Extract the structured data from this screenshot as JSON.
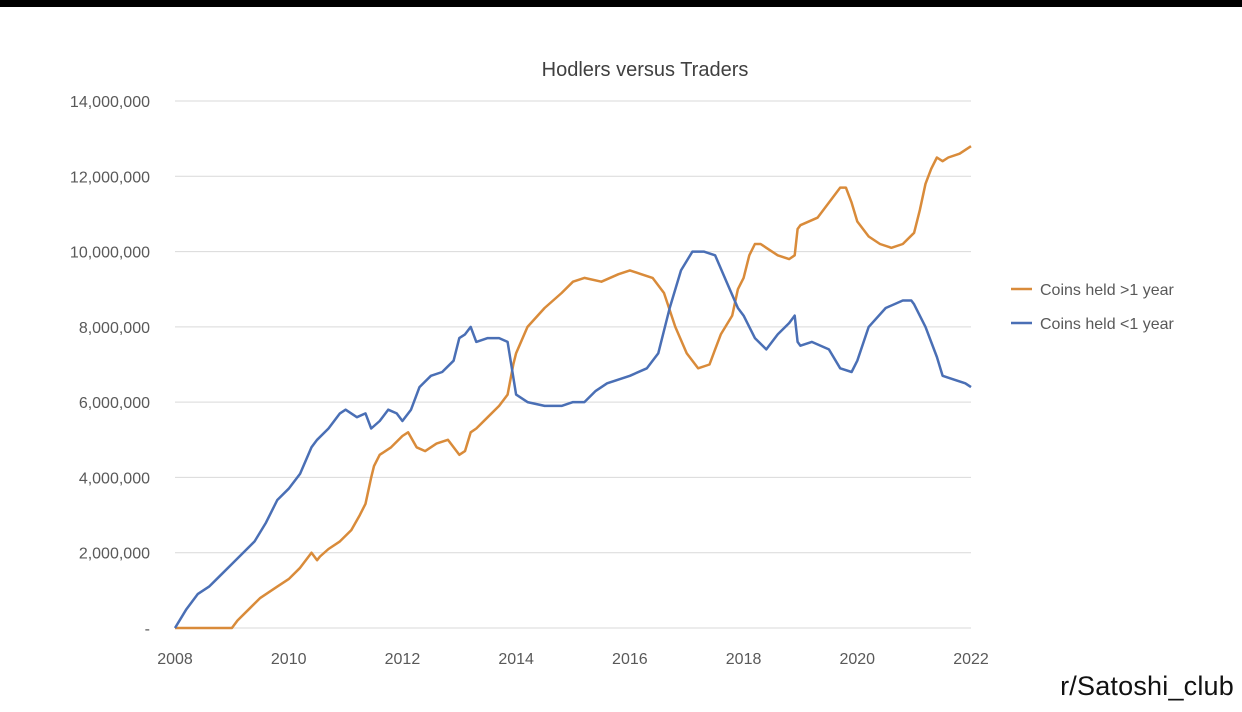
{
  "watermark": "r/Satoshi_club",
  "colors": {
    "coins_gt_1y": "#D98B3A",
    "coins_lt_1y": "#4A6FB5",
    "grid": "#D9D9D9",
    "text": "#595959",
    "top_bar": "#000000"
  },
  "chart_data": {
    "type": "line",
    "title": "Hodlers versus Traders",
    "xlabel": "",
    "ylabel": "",
    "xlim": [
      2008,
      2022
    ],
    "ylim": [
      0,
      14000000
    ],
    "x_ticks": [
      "2008",
      "2010",
      "2012",
      "2014",
      "2016",
      "2018",
      "2020",
      "2022"
    ],
    "y_ticks": [
      "-",
      "2,000,000",
      "4,000,000",
      "6,000,000",
      "8,000,000",
      "10,000,000",
      "12,000,000",
      "14,000,000"
    ],
    "y_tick_values": [
      0,
      2000000,
      4000000,
      6000000,
      8000000,
      10000000,
      12000000,
      14000000
    ],
    "grid": true,
    "legend_position": "right",
    "series": [
      {
        "name": "Coins held >1 year",
        "color": "#D98B3A",
        "x": [
          2008.0,
          2008.5,
          2009.0,
          2009.1,
          2009.3,
          2009.5,
          2009.8,
          2010.0,
          2010.2,
          2010.4,
          2010.5,
          2010.55,
          2010.7,
          2010.9,
          2011.1,
          2011.25,
          2011.35,
          2011.45,
          2011.5,
          2011.6,
          2011.8,
          2012.0,
          2012.1,
          2012.25,
          2012.4,
          2012.6,
          2012.8,
          2013.0,
          2013.1,
          2013.2,
          2013.3,
          2013.5,
          2013.7,
          2013.85,
          2013.95,
          2014.0,
          2014.2,
          2014.5,
          2014.8,
          2015.0,
          2015.2,
          2015.5,
          2015.8,
          2016.0,
          2016.2,
          2016.4,
          2016.6,
          2016.8,
          2017.0,
          2017.2,
          2017.4,
          2017.5,
          2017.6,
          2017.8,
          2017.9,
          2018.0,
          2018.1,
          2018.2,
          2018.3,
          2018.4,
          2018.6,
          2018.8,
          2018.9,
          2018.95,
          2019.0,
          2019.3,
          2019.5,
          2019.7,
          2019.8,
          2019.9,
          2020.0,
          2020.2,
          2020.4,
          2020.6,
          2020.8,
          2021.0,
          2021.1,
          2021.2,
          2021.3,
          2021.4,
          2021.5,
          2021.6,
          2021.8,
          2021.9,
          2022.0
        ],
        "y": [
          0,
          0,
          0,
          200000,
          500000,
          800000,
          1100000,
          1300000,
          1600000,
          2000000,
          1800000,
          1900000,
          2100000,
          2300000,
          2600000,
          3000000,
          3300000,
          4000000,
          4300000,
          4600000,
          4800000,
          5100000,
          5200000,
          4800000,
          4700000,
          4900000,
          5000000,
          4600000,
          4700000,
          5200000,
          5300000,
          5600000,
          5900000,
          6200000,
          7000000,
          7300000,
          8000000,
          8500000,
          8900000,
          9200000,
          9300000,
          9200000,
          9400000,
          9500000,
          9400000,
          9300000,
          8900000,
          8000000,
          7300000,
          6900000,
          7000000,
          7400000,
          7800000,
          8300000,
          9000000,
          9300000,
          9900000,
          10200000,
          10200000,
          10100000,
          9900000,
          9800000,
          9900000,
          10600000,
          10700000,
          10900000,
          11300000,
          11700000,
          11700000,
          11300000,
          10800000,
          10400000,
          10200000,
          10100000,
          10200000,
          10500000,
          11100000,
          11800000,
          12200000,
          12500000,
          12400000,
          12500000,
          12600000,
          12700000,
          12800000
        ]
      },
      {
        "name": "Coins held <1 year",
        "color": "#4A6FB5",
        "x": [
          2008.0,
          2008.2,
          2008.4,
          2008.6,
          2008.8,
          2009.0,
          2009.2,
          2009.4,
          2009.6,
          2009.8,
          2010.0,
          2010.2,
          2010.4,
          2010.5,
          2010.7,
          2010.9,
          2011.0,
          2011.2,
          2011.35,
          2011.45,
          2011.6,
          2011.75,
          2011.9,
          2012.0,
          2012.15,
          2012.3,
          2012.5,
          2012.7,
          2012.9,
          2013.0,
          2013.1,
          2013.2,
          2013.3,
          2013.5,
          2013.7,
          2013.85,
          2014.0,
          2014.2,
          2014.5,
          2014.8,
          2015.0,
          2015.2,
          2015.4,
          2015.6,
          2015.8,
          2016.0,
          2016.3,
          2016.5,
          2016.7,
          2016.9,
          2017.1,
          2017.3,
          2017.5,
          2017.7,
          2017.9,
          2018.0,
          2018.2,
          2018.4,
          2018.6,
          2018.8,
          2018.9,
          2018.95,
          2019.0,
          2019.2,
          2019.5,
          2019.7,
          2019.9,
          2020.0,
          2020.2,
          2020.5,
          2020.8,
          2020.95,
          2021.0,
          2021.2,
          2021.4,
          2021.5,
          2021.7,
          2021.9,
          2022.0
        ],
        "y": [
          0,
          500000,
          900000,
          1100000,
          1400000,
          1700000,
          2000000,
          2300000,
          2800000,
          3400000,
          3700000,
          4100000,
          4800000,
          5000000,
          5300000,
          5700000,
          5800000,
          5600000,
          5700000,
          5300000,
          5500000,
          5800000,
          5700000,
          5500000,
          5800000,
          6400000,
          6700000,
          6800000,
          7100000,
          7700000,
          7800000,
          8000000,
          7600000,
          7700000,
          7700000,
          7600000,
          6200000,
          6000000,
          5900000,
          5900000,
          6000000,
          6000000,
          6300000,
          6500000,
          6600000,
          6700000,
          6900000,
          7300000,
          8500000,
          9500000,
          10000000,
          10000000,
          9900000,
          9200000,
          8500000,
          8300000,
          7700000,
          7400000,
          7800000,
          8100000,
          8300000,
          7600000,
          7500000,
          7600000,
          7400000,
          6900000,
          6800000,
          7100000,
          8000000,
          8500000,
          8700000,
          8700000,
          8600000,
          8000000,
          7200000,
          6700000,
          6600000,
          6500000,
          6400000
        ]
      }
    ]
  }
}
